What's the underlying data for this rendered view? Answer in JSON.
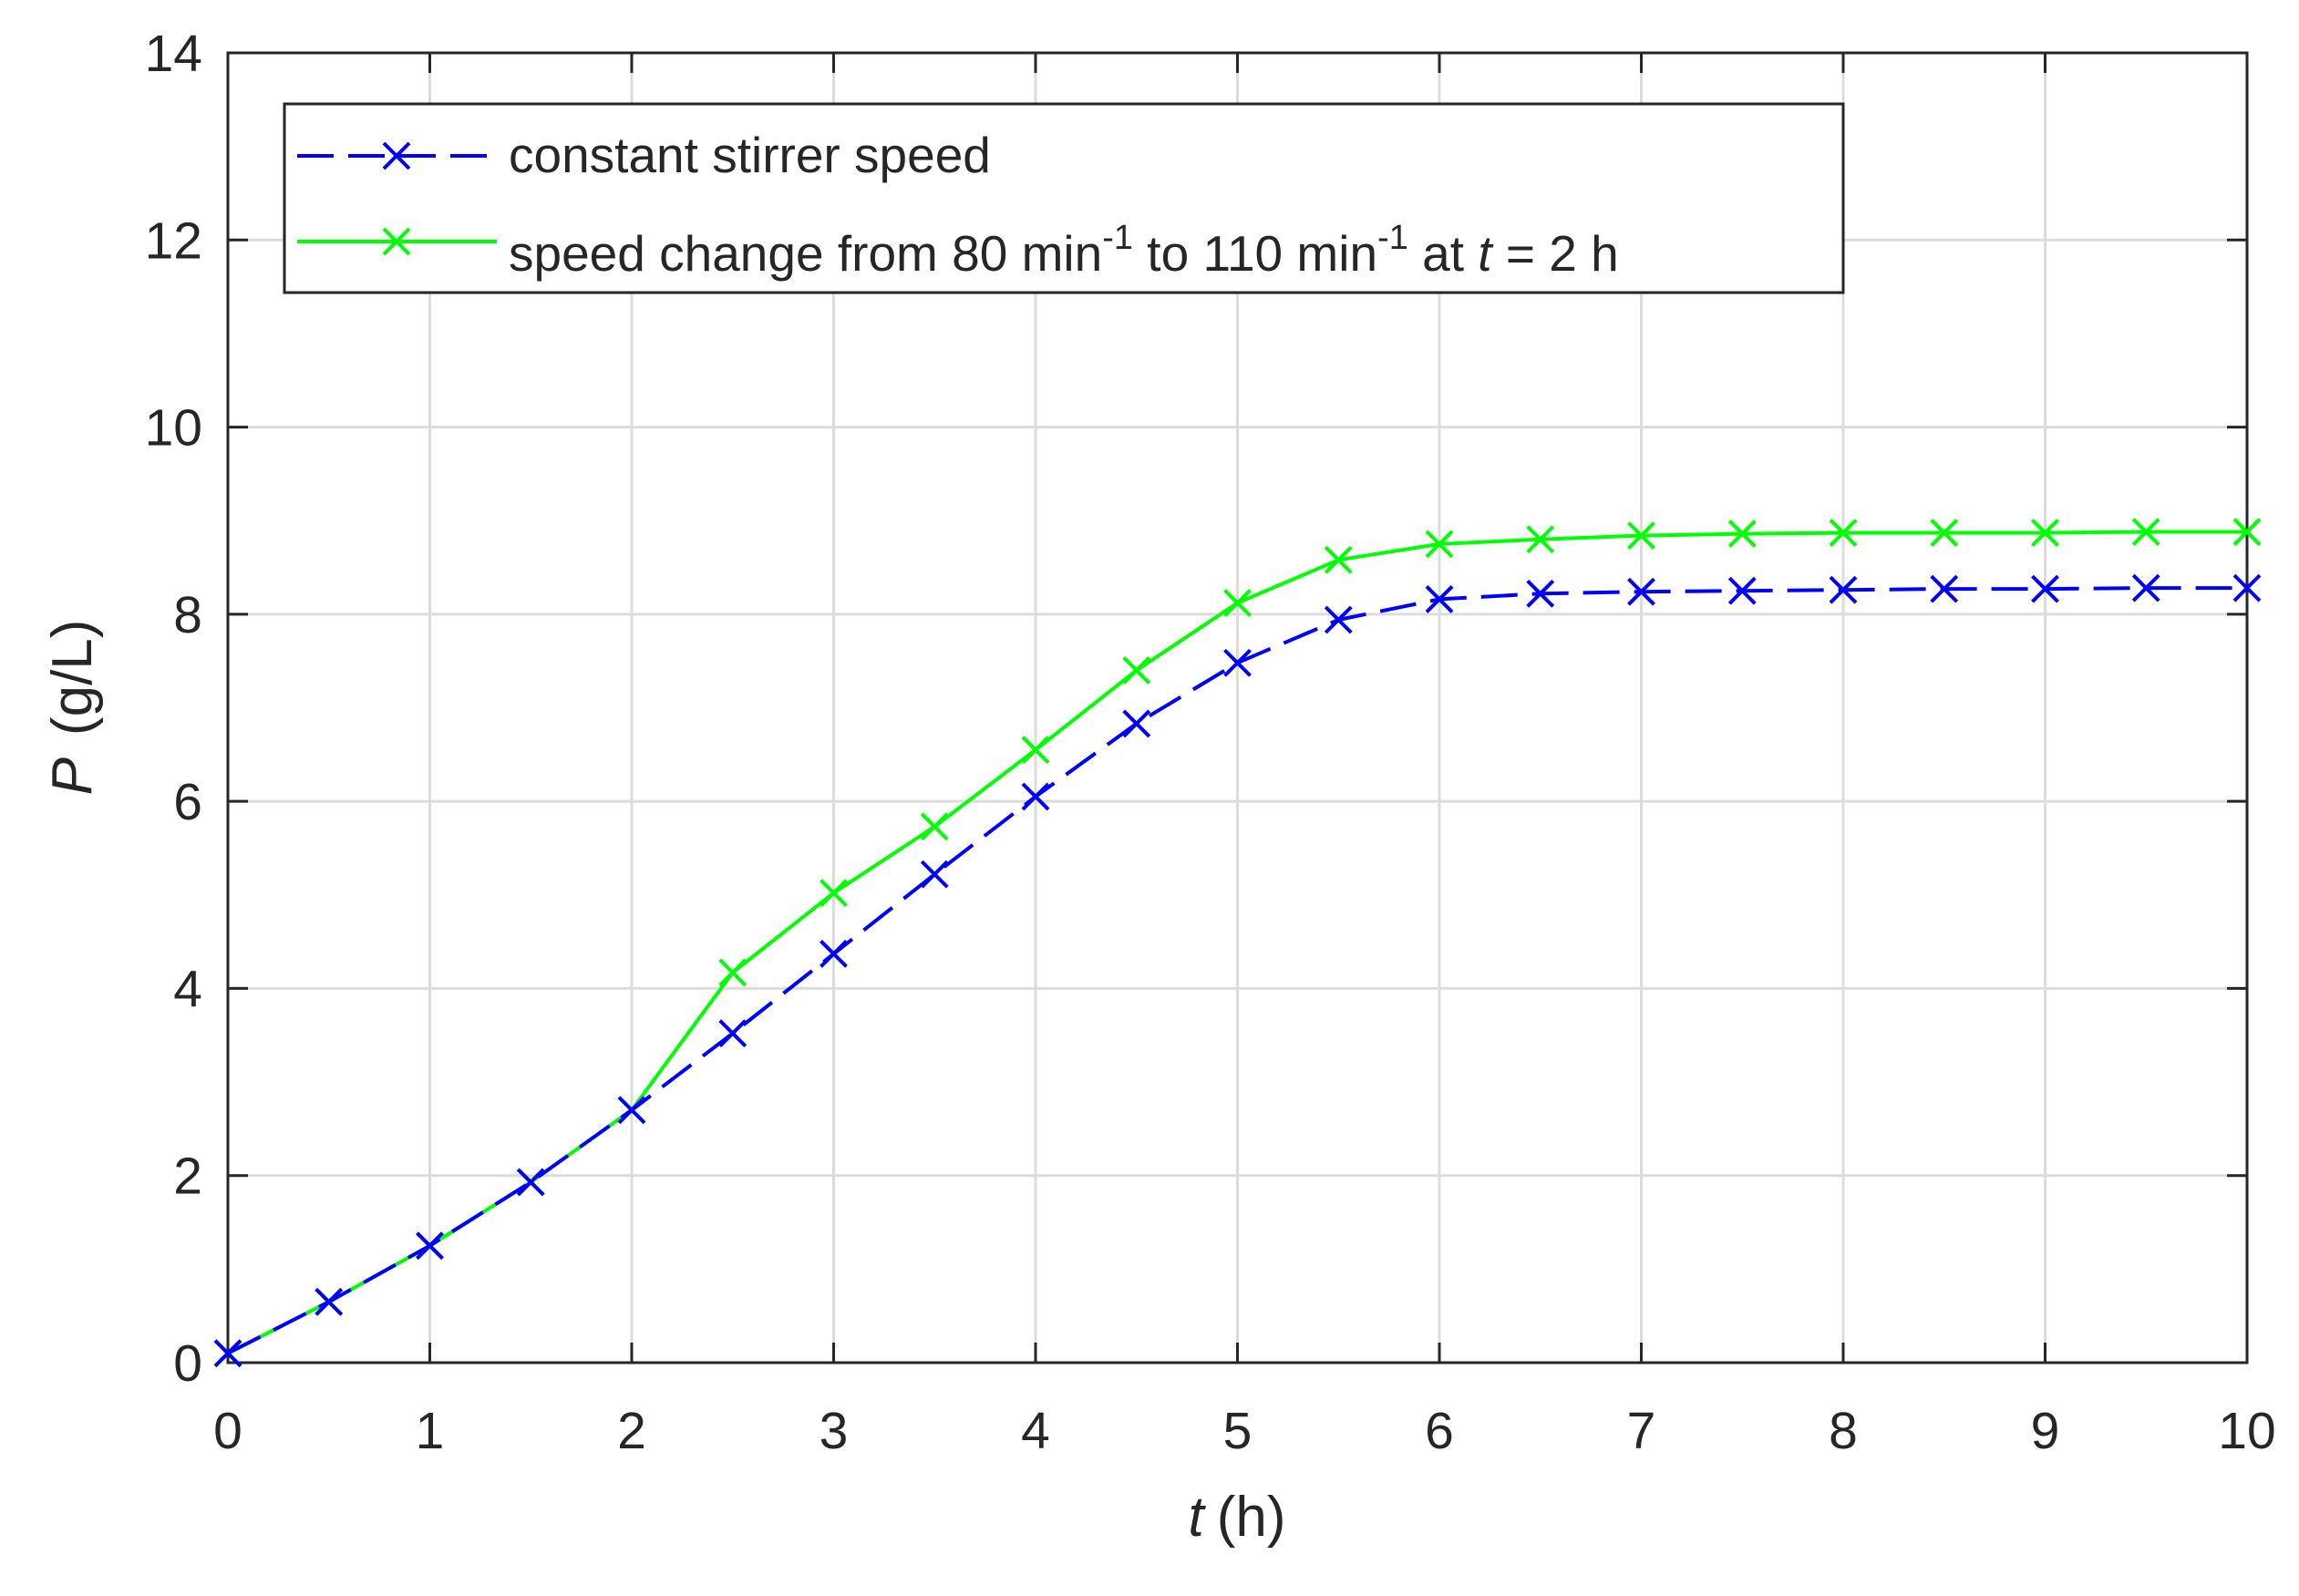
{
  "chart_data": {
    "type": "line",
    "title": "",
    "xlabel": {
      "var": "t",
      "unit": "(h)"
    },
    "ylabel": {
      "var": "P",
      "unit": "(g/L)"
    },
    "xlim": [
      0,
      10
    ],
    "ylim": [
      0,
      14
    ],
    "xticks": [
      0,
      1,
      2,
      3,
      4,
      5,
      6,
      7,
      8,
      9,
      10
    ],
    "yticks": [
      0,
      2,
      4,
      6,
      8,
      10,
      12,
      14
    ],
    "grid": true,
    "legend_position": "top-left",
    "series": [
      {
        "name": "constant stirrer speed",
        "color": "#0000FF",
        "line_style": "dashed",
        "marker": "x",
        "x": [
          0,
          0.5,
          1,
          1.5,
          2,
          2.5,
          3,
          3.5,
          4,
          4.5,
          5,
          5.5,
          6,
          6.5,
          7,
          7.5,
          8,
          8.5,
          9,
          9.5,
          10
        ],
        "y": [
          0.1,
          0.65,
          1.25,
          1.93,
          2.7,
          3.52,
          4.37,
          5.22,
          6.05,
          6.83,
          7.48,
          7.94,
          8.16,
          8.22,
          8.24,
          8.25,
          8.26,
          8.27,
          8.27,
          8.28,
          8.28
        ]
      },
      {
        "name": "speed change from 80 min-1 to 110 min-1 at t = 2 h",
        "color": "#00FF00",
        "line_style": "solid",
        "marker": "x",
        "x": [
          0,
          0.5,
          1,
          1.5,
          2,
          2.5,
          3,
          3.5,
          4,
          4.5,
          5,
          5.5,
          6,
          6.5,
          7,
          7.5,
          8,
          8.5,
          9,
          9.5,
          10
        ],
        "y": [
          0.1,
          0.65,
          1.25,
          1.93,
          2.7,
          4.17,
          5.02,
          5.73,
          6.55,
          7.4,
          8.12,
          8.58,
          8.75,
          8.8,
          8.84,
          8.86,
          8.87,
          8.87,
          8.87,
          8.88,
          8.88
        ]
      }
    ],
    "legend_entries": [
      {
        "text": "constant stirrer speed"
      },
      {
        "text_parts": {
          "pre": "speed change from 80 min",
          "sup1": "-1",
          "mid": " to 110 min",
          "sup2": "-1",
          "at": " at ",
          "var": "t",
          "post": " = 2 h"
        }
      }
    ]
  }
}
